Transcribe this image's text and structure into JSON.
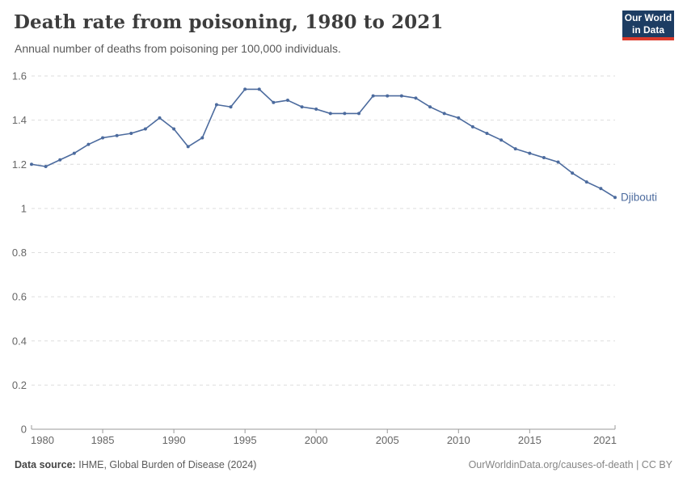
{
  "header": {
    "title": "Death rate from poisoning, 1980 to 2021",
    "subtitle": "Annual number of deaths from poisoning per 100,000 individuals."
  },
  "logo": {
    "line1": "Our World",
    "line2": "in Data",
    "bg_color": "#1d3d63",
    "accent_color": "#dc3a2b"
  },
  "chart_data": {
    "type": "line",
    "title": "Death rate from poisoning, 1980 to 2021",
    "xlabel": "",
    "ylabel": "Annual number of deaths from poisoning per 100,000 individuals",
    "x": [
      1980,
      1981,
      1982,
      1983,
      1984,
      1985,
      1986,
      1987,
      1988,
      1989,
      1990,
      1991,
      1992,
      1993,
      1994,
      1995,
      1996,
      1997,
      1998,
      1999,
      2000,
      2001,
      2002,
      2003,
      2004,
      2005,
      2006,
      2007,
      2008,
      2009,
      2010,
      2011,
      2012,
      2013,
      2014,
      2015,
      2016,
      2017,
      2018,
      2019,
      2020,
      2021
    ],
    "series": [
      {
        "name": "Djibouti",
        "color": "#4C6B9E",
        "values": [
          1.2,
          1.19,
          1.22,
          1.25,
          1.29,
          1.32,
          1.33,
          1.34,
          1.36,
          1.41,
          1.36,
          1.28,
          1.32,
          1.47,
          1.46,
          1.54,
          1.54,
          1.48,
          1.49,
          1.46,
          1.45,
          1.43,
          1.43,
          1.43,
          1.51,
          1.51,
          1.51,
          1.5,
          1.46,
          1.43,
          1.41,
          1.37,
          1.34,
          1.31,
          1.27,
          1.25,
          1.23,
          1.21,
          1.16,
          1.12,
          1.09,
          1.05
        ]
      }
    ],
    "xlim": [
      1980,
      2021
    ],
    "ylim": [
      0,
      1.6
    ],
    "y_ticks": [
      0,
      0.2,
      0.4,
      0.6,
      0.8,
      1,
      1.2,
      1.4,
      1.6
    ],
    "y_tick_labels": [
      "0",
      "0.2",
      "0.4",
      "0.6",
      "0.8",
      "1",
      "1.2",
      "1.4",
      "1.6"
    ],
    "x_ticks": [
      1980,
      1985,
      1990,
      1995,
      2000,
      2005,
      2010,
      2015,
      2021
    ],
    "grid": "horizontal-dashed",
    "legend_position": "end-of-line-label",
    "colors": {
      "gridline": "#dedede",
      "axis": "#999999",
      "tick_label": "#666666"
    }
  },
  "footer": {
    "source_label": "Data source:",
    "source_text": "IHME, Global Burden of Disease (2024)",
    "credit": "OurWorldinData.org/causes-of-death | CC BY"
  }
}
